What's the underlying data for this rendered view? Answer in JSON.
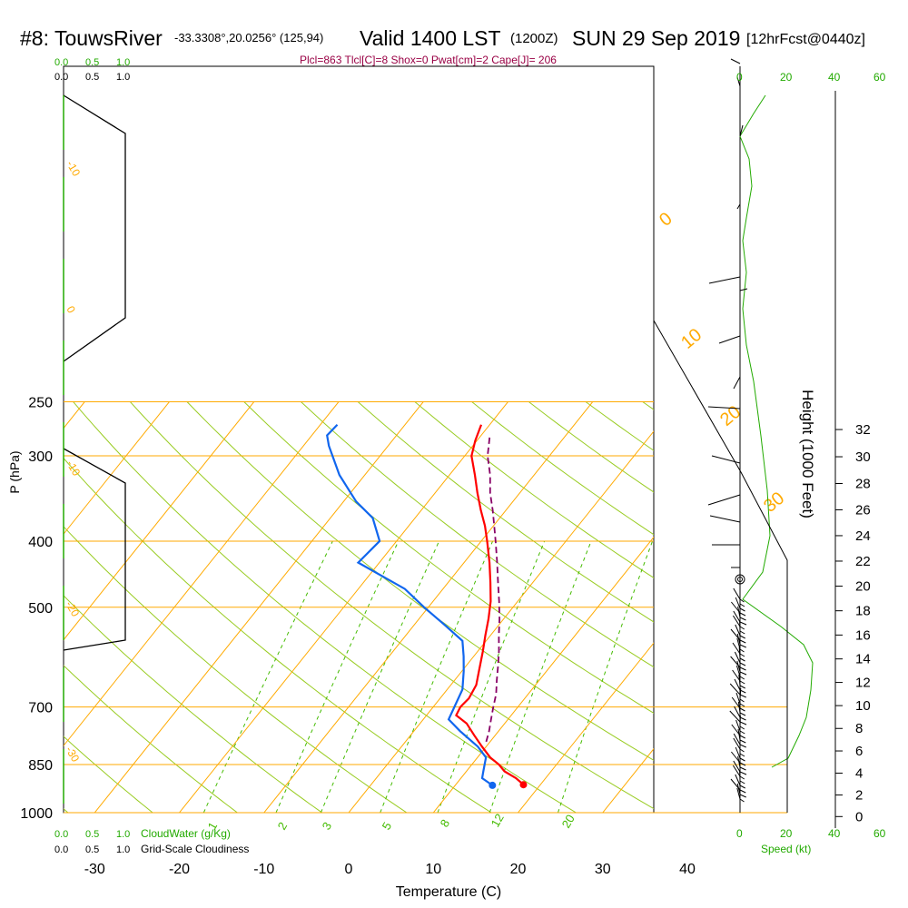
{
  "header": {
    "station": "#8: TouwsRiver",
    "coords": "-33.3308°,20.0256° (125,94)",
    "valid": "Valid 1400 LST",
    "zulu": "(1200Z)",
    "date": "SUN 29 Sep 2019",
    "forecast": "[12hrFcst@0440z]"
  },
  "indices_line": "Plcl=863 Tlcl[C]=8 Shox=0 Pwat[cm]=2 Cape[J]= 206",
  "colors": {
    "temperature": "#ff0000",
    "dewpoint": "#1166ee",
    "parcel": "#880066",
    "isotherm_isobar": "#ffaa00",
    "mixing_ratio": "#44bb00",
    "adiabat": "#99cc22",
    "green_text": "#22aa00",
    "indices_text": "#990044"
  },
  "scales": {
    "cloudwater_ticks_top": [
      "0.0",
      "0.5",
      "1.0"
    ],
    "cloudiness_ticks_top": [
      "0.0",
      "0.5",
      "1.0"
    ],
    "cloudwater_ticks_bottom": [
      "0.0",
      "0.5",
      "1.0"
    ],
    "cloudiness_ticks_bottom": [
      "0.0",
      "0.5",
      "1.0"
    ],
    "cloudwater_label": "CloudWater (g/Kg)",
    "cloudiness_label": "Grid-Scale Cloudiness",
    "speed_ticks": [
      "0",
      "20",
      "40",
      "60"
    ],
    "speed_label": "Speed (kt)"
  },
  "chart_data": {
    "type": "line",
    "subtype": "skew-T log-p sounding",
    "xlabel": "Temperature (C)",
    "ylabel": "P (hPa)",
    "y2label": "Height (1000 Feet)",
    "x_ticks": [
      -30,
      -20,
      -10,
      0,
      10,
      20,
      30,
      40
    ],
    "y_ticks": [
      250,
      300,
      400,
      500,
      700,
      850,
      1000
    ],
    "y2_ticks": [
      0,
      2,
      4,
      6,
      8,
      10,
      12,
      14,
      16,
      18,
      20,
      22,
      24,
      26,
      28,
      30,
      32
    ],
    "mixing_ratio_labels": [
      "1",
      "2",
      "3",
      "5",
      "8",
      "12",
      "20"
    ],
    "isotherm_labels": [
      "0",
      "10",
      "20",
      "30"
    ],
    "left_panel_labels": [
      "-10",
      "0",
      "-10",
      "-20",
      "-30"
    ],
    "series": [
      {
        "name": "Temperature",
        "points": [
          [
            270,
            -21.0
          ],
          [
            285,
            -20.2
          ],
          [
            300,
            -19.2
          ],
          [
            320,
            -17.0
          ],
          [
            340,
            -15.0
          ],
          [
            360,
            -13.0
          ],
          [
            380,
            -11.0
          ],
          [
            400,
            -9.3
          ],
          [
            430,
            -7.0
          ],
          [
            460,
            -5.0
          ],
          [
            490,
            -3.2
          ],
          [
            520,
            -1.8
          ],
          [
            550,
            -0.6
          ],
          [
            580,
            0.6
          ],
          [
            620,
            2.0
          ],
          [
            650,
            3.0
          ],
          [
            680,
            3.4
          ],
          [
            700,
            3.2
          ],
          [
            720,
            3.5
          ],
          [
            740,
            5.5
          ],
          [
            770,
            7.5
          ],
          [
            800,
            9.5
          ],
          [
            830,
            11.5
          ],
          [
            850,
            13.2
          ],
          [
            870,
            14.5
          ],
          [
            890,
            16.5
          ],
          [
            910,
            18.0
          ]
        ]
      },
      {
        "name": "Dewpoint",
        "points": [
          [
            270,
            -38.0
          ],
          [
            280,
            -38.2
          ],
          [
            290,
            -37.0
          ],
          [
            320,
            -33.0
          ],
          [
            350,
            -28.5
          ],
          [
            370,
            -25.0
          ],
          [
            400,
            -22.0
          ],
          [
            430,
            -22.5
          ],
          [
            470,
            -14.5
          ],
          [
            500,
            -10.5
          ],
          [
            530,
            -6.5
          ],
          [
            560,
            -2.8
          ],
          [
            590,
            -1.2
          ],
          [
            620,
            0.2
          ],
          [
            660,
            1.8
          ],
          [
            700,
            2.5
          ],
          [
            730,
            3.0
          ],
          [
            760,
            5.5
          ],
          [
            800,
            9.0
          ],
          [
            830,
            11.0
          ],
          [
            850,
            11.5
          ],
          [
            870,
            12.0
          ],
          [
            890,
            12.5
          ],
          [
            912,
            14.4
          ]
        ]
      },
      {
        "name": "Parcel",
        "points": [
          [
            282,
            -18.8
          ],
          [
            300,
            -17.3
          ],
          [
            320,
            -15.2
          ],
          [
            340,
            -13.5
          ],
          [
            360,
            -11.6
          ],
          [
            380,
            -9.9
          ],
          [
            400,
            -8.3
          ],
          [
            430,
            -6.1
          ],
          [
            460,
            -4.1
          ],
          [
            490,
            -2.2
          ],
          [
            520,
            -0.5
          ],
          [
            550,
            1.0
          ],
          [
            580,
            2.5
          ],
          [
            610,
            3.8
          ],
          [
            640,
            5.0
          ],
          [
            670,
            6.2
          ],
          [
            700,
            7.1
          ],
          [
            730,
            8.0
          ],
          [
            760,
            8.9
          ],
          [
            790,
            9.6
          ]
        ]
      }
    ]
  }
}
